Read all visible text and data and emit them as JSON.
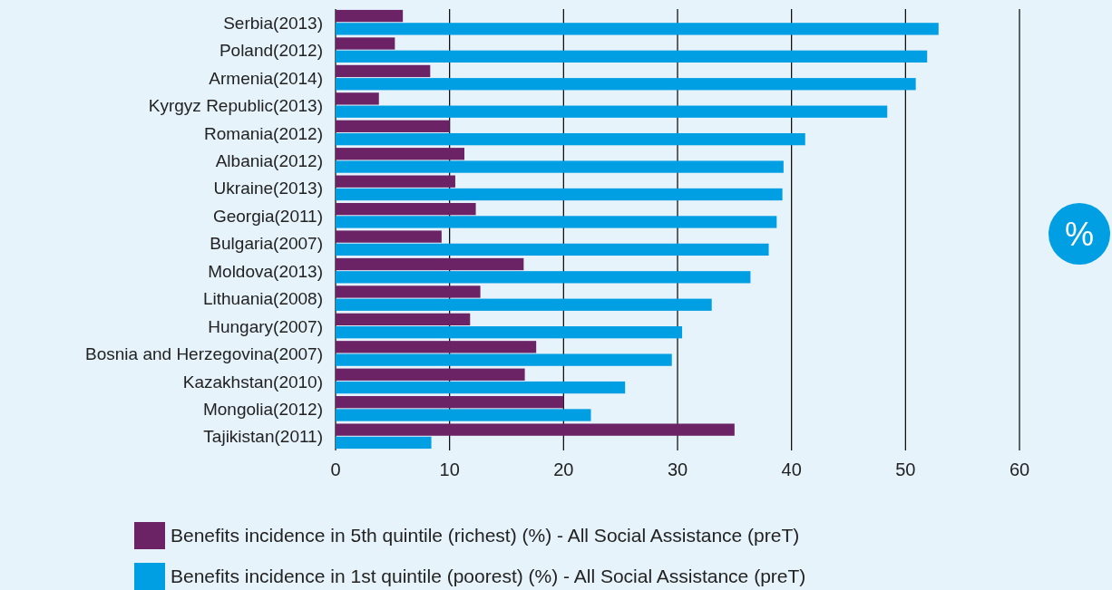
{
  "chart_data": {
    "type": "bar",
    "orientation": "horizontal",
    "categories": [
      "Serbia(2013)",
      "Poland(2012)",
      "Armenia(2014)",
      "Kyrgyz Republic(2013)",
      "Romania(2012)",
      "Albania(2012)",
      "Ukraine(2013)",
      "Georgia(2011)",
      "Bulgaria(2007)",
      "Moldova(2013)",
      "Lithuania(2008)",
      "Hungary(2007)",
      "Bosnia and Herzegovina(2007)",
      "Kazakhstan(2010)",
      "Mongolia(2012)",
      "Tajikistan(2011)"
    ],
    "series": [
      {
        "name": "Benefits incidence in 5th quintile (richest) (%) - All Social Assistance (preT)",
        "color": "#6b2366",
        "values": [
          5.9,
          5.2,
          8.3,
          3.8,
          10.0,
          11.3,
          10.5,
          12.3,
          9.3,
          16.5,
          12.7,
          11.8,
          17.6,
          16.6,
          20.0,
          35.0
        ]
      },
      {
        "name": "Benefits incidence in 1st quintile (poorest) (%) - All Social Assistance (preT)",
        "color": "#009fe3",
        "values": [
          52.9,
          51.9,
          50.9,
          48.4,
          41.2,
          39.3,
          39.2,
          38.7,
          38.0,
          36.4,
          33.0,
          30.4,
          29.5,
          25.4,
          22.4,
          8.4
        ]
      }
    ],
    "xlim": [
      0,
      60
    ],
    "xticks": [
      0,
      10,
      20,
      30,
      40,
      50,
      60
    ],
    "grid": "x",
    "legend": "bottom",
    "annotations": [
      "%"
    ]
  }
}
